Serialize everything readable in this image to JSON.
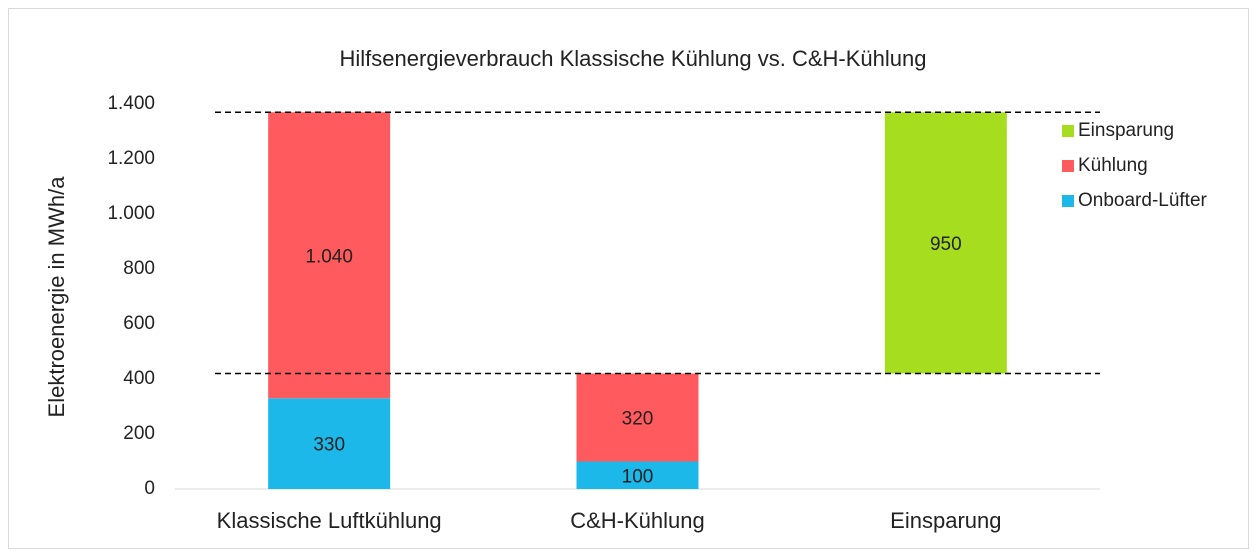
{
  "chart_data": {
    "type": "bar",
    "stacked": true,
    "waterfall": true,
    "title": "Hilfsenergieverbrauch Klassische Kühlung vs. C&H-Kühlung",
    "y_label": "Elektroenergie in MWh/a",
    "categories": [
      "Klassische Luftkühlung",
      "C&H-Kühlung",
      "Einsparung"
    ],
    "series": [
      {
        "name": "Onboard-Lüfter",
        "color": "#1cb8ea",
        "values": [
          330,
          100,
          null
        ]
      },
      {
        "name": "Kühlung",
        "color": "#ff5a5e",
        "values": [
          1040,
          320,
          null
        ],
        "value_labels": [
          "1.040",
          "320",
          null
        ]
      },
      {
        "name": "Einsparung",
        "color": "#a6dd1e",
        "values": [
          null,
          null,
          950
        ]
      }
    ],
    "ylim": [
      0,
      1400
    ],
    "yticks": [
      0,
      200,
      400,
      600,
      800,
      {
        "value": 1000,
        "label": "1.000"
      },
      {
        "value": 1200,
        "label": "1.200"
      },
      {
        "value": 1400,
        "label": "1.400"
      }
    ],
    "legend": "right"
  }
}
